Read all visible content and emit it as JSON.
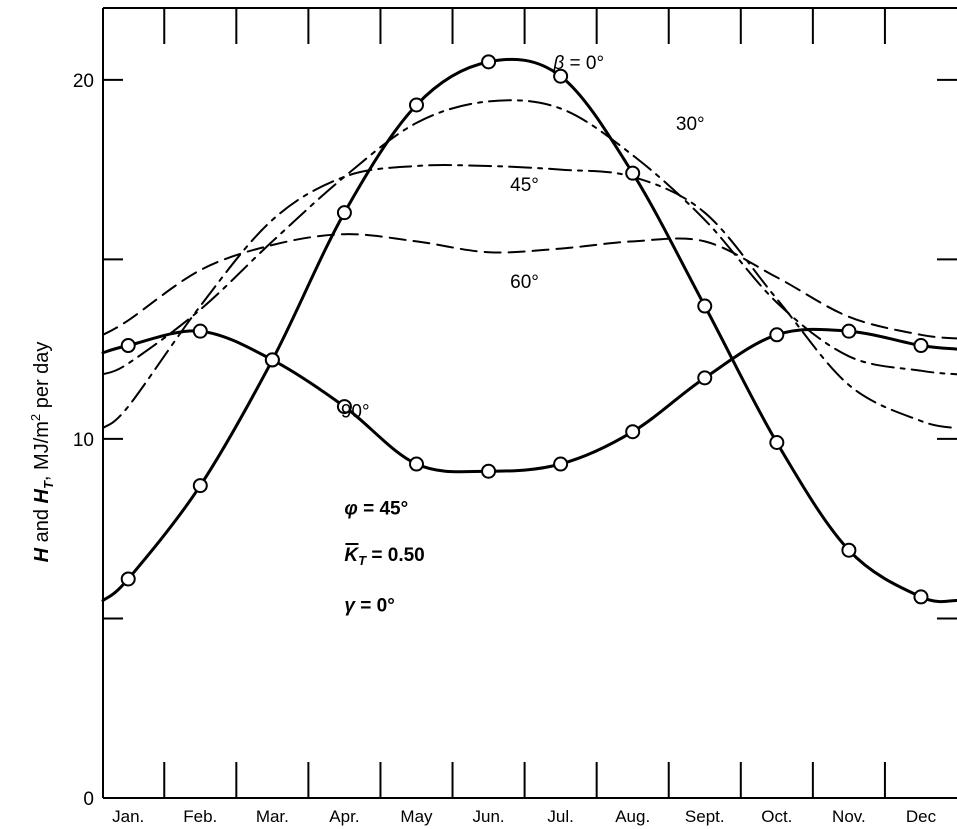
{
  "chart_data": {
    "type": "line",
    "title": "",
    "xlabel": "",
    "ylabel": "H̄ and H̄_T, MJ/m² per day",
    "ylabel_parts": {
      "h": "H",
      "and": " and ",
      "ht": "H",
      "ht_sub": "T",
      "unit": ", MJ/m",
      "unit_sup": "2",
      "per": " per day"
    },
    "ylim": [
      0,
      22
    ],
    "yticks": [
      {
        "value": 0,
        "label": "0"
      },
      {
        "value": 5,
        "label": ""
      },
      {
        "value": 10,
        "label": "10"
      },
      {
        "value": 15,
        "label": ""
      },
      {
        "value": 20,
        "label": "20"
      }
    ],
    "x_range": [
      0.65,
      12.5
    ],
    "categories": [
      "Jan.",
      "Feb.",
      "Mar.",
      "Apr.",
      "May",
      "Jun.",
      "Jul.",
      "Aug.",
      "Sept.",
      "Oct.",
      "Nov.",
      "Dec"
    ],
    "month_boundaries": [
      1.5,
      2.5,
      3.5,
      4.5,
      5.5,
      6.5,
      7.5,
      8.5,
      9.5,
      10.5,
      11.5
    ],
    "grid": false,
    "series": [
      {
        "name": "β = 0°",
        "label_parts": {
          "beta": "β",
          "eq": " = 0°"
        },
        "style": "solid",
        "markers": true,
        "label_at": [
          6.9,
          20.3
        ],
        "x": [
          0.65,
          1,
          2,
          3,
          4,
          5,
          6,
          7,
          8,
          9,
          10,
          11,
          12,
          12.5
        ],
        "y": [
          5.5,
          6.1,
          8.7,
          12.2,
          16.3,
          19.3,
          20.5,
          20.1,
          17.4,
          13.7,
          9.9,
          6.9,
          5.6,
          5.5
        ]
      },
      {
        "name": "30°",
        "style": "dashdot",
        "markers": false,
        "label_at": [
          8.6,
          18.6
        ],
        "x": [
          0.65,
          1,
          2,
          3,
          4,
          5,
          6,
          7,
          8,
          9,
          10,
          11,
          12,
          12.5
        ],
        "y": [
          11.8,
          12.1,
          13.6,
          15.5,
          17.3,
          18.8,
          19.4,
          19.2,
          17.9,
          16.1,
          13.8,
          12.3,
          11.9,
          11.8
        ]
      },
      {
        "name": "45°",
        "style": "dashdot",
        "markers": false,
        "label_at": [
          6.3,
          16.9
        ],
        "x": [
          0.65,
          1,
          2,
          3,
          4,
          5,
          6,
          7,
          8,
          9,
          10,
          11,
          12,
          12.5
        ],
        "y": [
          10.3,
          10.9,
          13.7,
          16.1,
          17.3,
          17.6,
          17.6,
          17.5,
          17.3,
          16.3,
          13.9,
          11.5,
          10.5,
          10.3
        ]
      },
      {
        "name": "60°",
        "style": "dashed",
        "markers": false,
        "label_at": [
          6.3,
          14.2
        ],
        "x": [
          0.65,
          1,
          2,
          3,
          4,
          5,
          6,
          7,
          8,
          9,
          10,
          11,
          12,
          12.5
        ],
        "y": [
          12.9,
          13.3,
          14.7,
          15.4,
          15.7,
          15.5,
          15.2,
          15.3,
          15.5,
          15.5,
          14.5,
          13.4,
          12.9,
          12.8
        ]
      },
      {
        "name": "90°",
        "style": "solid",
        "markers": true,
        "label_at": [
          3.95,
          10.6
        ],
        "x": [
          0.65,
          1,
          2,
          3,
          4,
          5,
          6,
          7,
          8,
          9,
          10,
          11,
          12,
          12.5
        ],
        "y": [
          12.4,
          12.6,
          13.0,
          12.2,
          10.9,
          9.3,
          9.1,
          9.3,
          10.2,
          11.7,
          12.9,
          13.0,
          12.6,
          12.5
        ]
      }
    ],
    "annotations": [
      {
        "id": "phi",
        "parts": {
          "symbol": "φ",
          "text": " = 45°"
        },
        "at": [
          4.0,
          7.9
        ]
      },
      {
        "id": "kt",
        "parts": {
          "symbol": "K",
          "sub": "T",
          "text": " = 0.50"
        },
        "at": [
          4.0,
          6.6
        ]
      },
      {
        "id": "gamma",
        "parts": {
          "symbol": "γ",
          "text": " = 0°"
        },
        "at": [
          4.0,
          5.2
        ]
      }
    ]
  }
}
